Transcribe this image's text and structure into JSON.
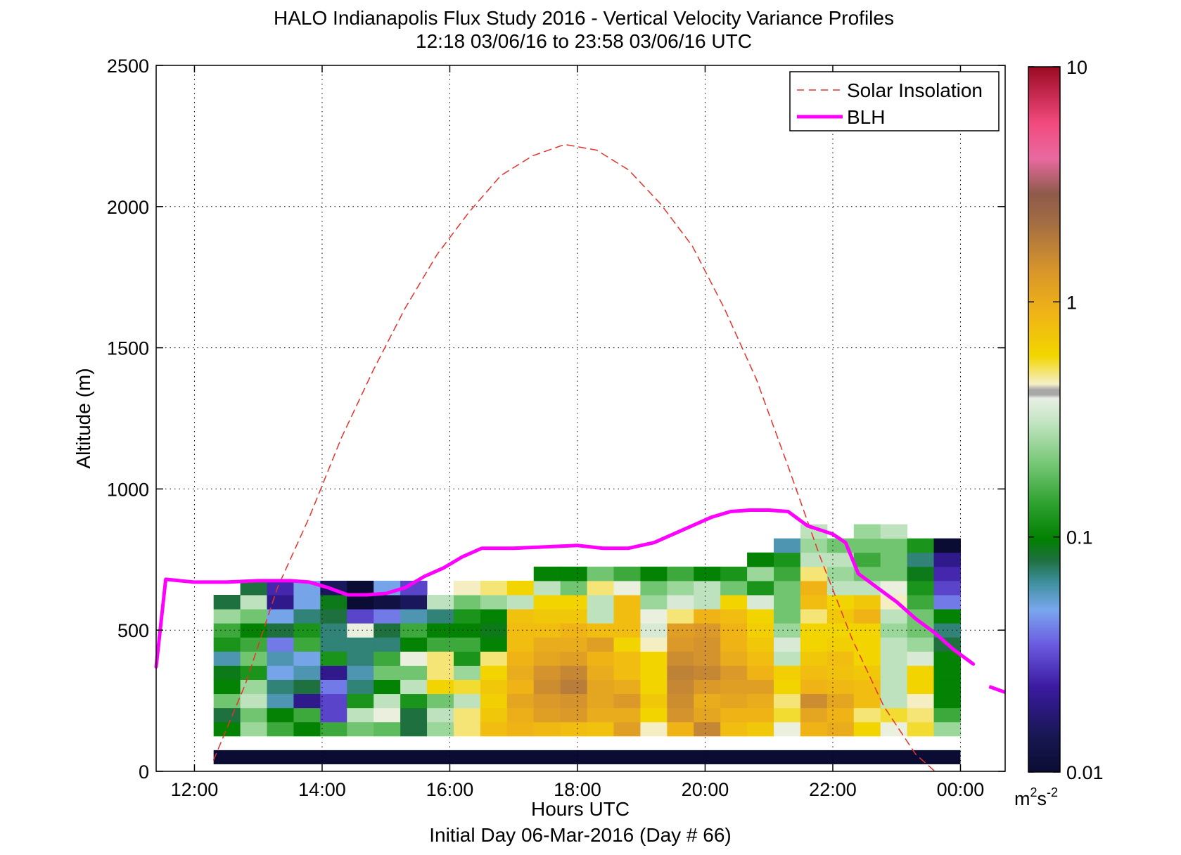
{
  "chart_data": {
    "type": "heatmap",
    "title": "HALO Indianapolis Flux Study 2016 - Vertical Velocity Variance Profiles",
    "subtitle": "12:18 03/06/16 to 23:58 03/06/16  UTC",
    "xlabel": "Hours UTC",
    "xlabel2": "Initial Day 06-Mar-2016 (Day # 66)",
    "ylabel": "Altitude (m)",
    "xlim": [
      11.4,
      24.7
    ],
    "ylim": [
      0,
      2500
    ],
    "x_ticks": [
      12,
      14,
      16,
      18,
      20,
      22,
      24
    ],
    "x_tick_labels": [
      "12:00",
      "14:00",
      "16:00",
      "18:00",
      "20:00",
      "22:00",
      "00:00"
    ],
    "y_ticks": [
      0,
      500,
      1000,
      1500,
      2000,
      2500
    ],
    "y_tick_labels": [
      "0",
      "500",
      "1000",
      "1500",
      "2000",
      "2500"
    ],
    "grid": true,
    "legend_position": "top-right",
    "colorbar": {
      "scale": "log",
      "min": 0.01,
      "max": 10,
      "tick_values": [
        0.01,
        0.1,
        1,
        10
      ],
      "tick_labels": [
        "0.01",
        "0.1",
        "1",
        "10"
      ],
      "units": "m²s⁻²",
      "units_base": "m",
      "units_sup1": "2",
      "units_s": "s",
      "units_sup2": "-2"
    },
    "series": [
      {
        "name": "Solar Insolation",
        "style": "dashed",
        "color": "#e8312b",
        "x": [
          12.3,
          12.8,
          13.3,
          13.8,
          14.3,
          14.8,
          15.3,
          15.8,
          16.3,
          16.8,
          17.3,
          17.8,
          18.3,
          18.8,
          19.3,
          19.8,
          20.3,
          20.8,
          21.3,
          21.8,
          22.3,
          22.8,
          23.3,
          23.6
        ],
        "y": [
          40,
          310,
          650,
          900,
          1180,
          1420,
          1640,
          1830,
          1980,
          2110,
          2180,
          2220,
          2200,
          2130,
          2010,
          1860,
          1640,
          1390,
          1080,
          760,
          470,
          230,
          60,
          0
        ]
      },
      {
        "name": "BLH",
        "style": "solid",
        "color": "#ff00ff",
        "x": [
          11.4,
          11.55,
          12.0,
          12.5,
          13.0,
          13.5,
          13.8,
          14.1,
          14.4,
          14.7,
          15.0,
          15.3,
          15.6,
          15.9,
          16.2,
          16.5,
          17.0,
          17.5,
          18.0,
          18.4,
          18.8,
          19.2,
          19.5,
          19.8,
          20.1,
          20.4,
          20.7,
          21.0,
          21.3,
          21.6,
          22.0,
          22.2,
          22.4,
          22.7,
          23.0,
          23.3,
          23.6,
          23.9,
          24.2
        ],
        "y": [
          370,
          680,
          670,
          670,
          675,
          675,
          670,
          650,
          625,
          625,
          630,
          650,
          690,
          720,
          760,
          790,
          790,
          795,
          800,
          790,
          790,
          810,
          840,
          870,
          900,
          920,
          925,
          925,
          920,
          870,
          840,
          810,
          700,
          650,
          600,
          540,
          490,
          430,
          380
        ],
        "extension_x": [
          24.45,
          24.7
        ],
        "extension_y": [
          300,
          280
        ]
      }
    ],
    "heatmap": {
      "x_start": 12.3,
      "x_end": 24.0,
      "bins": 28,
      "altitudes": [
        75,
        150,
        200,
        250,
        300,
        350,
        400,
        450,
        500,
        550,
        600,
        650,
        700,
        750,
        800,
        850,
        900,
        950
      ],
      "bin_height": 50,
      "variance_columns": [
        [
          0.12,
          0.1,
          0.08,
          0.2,
          0.1,
          0.09,
          0.06,
          0.12,
          0.15,
          0.25,
          0.08,
          null,
          null,
          null,
          null,
          null,
          null,
          null
        ],
        [
          0.15,
          0.25,
          0.2,
          0.3,
          0.25,
          0.12,
          0.2,
          0.15,
          0.1,
          0.2,
          0.3,
          0.08,
          null,
          null,
          null,
          null,
          null,
          null
        ],
        [
          0.08,
          0.15,
          0.1,
          0.06,
          0.07,
          0.05,
          0.06,
          0.04,
          0.08,
          0.05,
          0.02,
          0.025,
          null,
          null,
          null,
          null,
          null,
          null
        ],
        [
          0.08,
          0.1,
          0.15,
          0.02,
          0.08,
          0.06,
          0.05,
          0.15,
          0.12,
          0.07,
          0.05,
          0.05,
          null,
          null,
          null,
          null,
          null,
          null
        ],
        [
          0.03,
          0.15,
          0.03,
          0.03,
          0.04,
          0.02,
          0.12,
          0.07,
          0.07,
          0.08,
          0.09,
          0.015,
          null,
          null,
          null,
          null,
          null,
          null
        ],
        [
          0.15,
          0.2,
          0.3,
          0.12,
          0.07,
          0.06,
          0.07,
          0.07,
          0.4,
          0.03,
          0.01,
          0.01,
          null,
          null,
          null,
          null,
          null,
          null
        ],
        [
          0.25,
          0.18,
          0.4,
          0.3,
          0.1,
          0.2,
          0.15,
          0.07,
          0.08,
          0.04,
          0.012,
          0.05,
          null,
          null,
          null,
          null,
          null,
          null
        ],
        [
          0.1,
          0.08,
          0.08,
          0.12,
          0.3,
          0.2,
          0.4,
          0.1,
          0.15,
          0.06,
          0.015,
          0.03,
          null,
          null,
          null,
          null,
          null,
          null
        ],
        [
          0.3,
          0.25,
          0.3,
          0.2,
          0.6,
          0.5,
          0.5,
          0.15,
          0.1,
          0.07,
          0.3,
          null,
          null,
          null,
          null,
          null,
          null,
          null
        ],
        [
          0.45,
          0.5,
          0.5,
          0.3,
          0.55,
          0.25,
          0.12,
          0.15,
          0.1,
          0.12,
          0.2,
          0.45,
          null,
          null,
          null,
          null,
          null,
          null
        ],
        [
          0.6,
          0.8,
          0.7,
          0.65,
          0.7,
          0.6,
          0.5,
          0.1,
          0.09,
          0.1,
          0.25,
          0.5,
          null,
          null,
          null,
          null,
          null,
          null
        ],
        [
          0.55,
          0.9,
          0.95,
          1.1,
          0.9,
          1.0,
          0.9,
          0.8,
          0.8,
          0.75,
          0.3,
          0.6,
          null,
          null,
          null,
          null,
          null,
          null
        ],
        [
          0.6,
          0.85,
          1.2,
          1.3,
          1.5,
          1.4,
          1.1,
          1.0,
          0.8,
          0.7,
          0.6,
          0.3,
          0.1,
          null,
          null,
          null,
          null,
          null
        ],
        [
          0.55,
          0.8,
          1.3,
          1.4,
          1.8,
          1.6,
          1.2,
          1.0,
          0.9,
          0.7,
          0.6,
          0.2,
          0.1,
          null,
          null,
          null,
          null,
          null
        ],
        [
          0.7,
          0.75,
          1.0,
          1.1,
          1.1,
          1.0,
          0.9,
          1.2,
          0.8,
          0.3,
          0.3,
          0.5,
          0.2,
          null,
          null,
          null,
          null,
          null
        ],
        [
          0.7,
          1.2,
          1.0,
          1.3,
          1.0,
          0.8,
          0.8,
          0.6,
          0.8,
          0.8,
          0.8,
          0.4,
          0.15,
          null,
          null,
          null,
          null,
          null
        ],
        [
          0.35,
          0.45,
          0.6,
          0.7,
          0.6,
          0.6,
          0.6,
          0.45,
          0.35,
          0.4,
          0.25,
          0.2,
          0.1,
          null,
          null,
          null,
          null,
          null
        ],
        [
          0.8,
          0.9,
          1.4,
          1.5,
          1.6,
          1.7,
          1.5,
          1.3,
          1.2,
          0.5,
          0.35,
          0.25,
          0.15,
          null,
          null,
          null,
          null,
          null
        ],
        [
          0.9,
          1.6,
          1.1,
          1.0,
          1.3,
          1.6,
          1.4,
          1.4,
          1.3,
          0.9,
          0.3,
          0.3,
          0.1,
          null,
          null,
          null,
          null,
          null
        ],
        [
          0.75,
          0.8,
          0.9,
          1.1,
          1.2,
          1.3,
          1.0,
          0.9,
          0.9,
          0.8,
          0.6,
          0.2,
          0.12,
          null,
          null,
          null,
          null,
          null
        ],
        [
          0.6,
          0.7,
          0.9,
          1.0,
          1.2,
          0.9,
          0.8,
          0.7,
          0.65,
          0.6,
          0.35,
          0.12,
          0.25,
          0.1,
          null,
          null,
          null,
          null
        ],
        [
          0.5,
          0.4,
          0.55,
          0.5,
          0.6,
          0.65,
          0.3,
          0.35,
          0.25,
          0.2,
          0.2,
          0.2,
          0.15,
          0.12,
          0.06,
          null,
          null,
          null
        ],
        [
          0.6,
          0.9,
          1.1,
          1.5,
          0.9,
          0.8,
          0.7,
          0.6,
          0.6,
          0.5,
          0.8,
          0.9,
          0.5,
          0.3,
          0.25,
          0.3,
          null,
          null
        ],
        [
          0.6,
          1.0,
          0.9,
          1.1,
          0.85,
          0.75,
          0.8,
          0.65,
          0.6,
          0.7,
          0.6,
          0.3,
          0.25,
          0.3,
          0.2,
          null,
          null,
          null
        ],
        [
          0.3,
          0.6,
          0.5,
          0.8,
          0.8,
          0.7,
          0.6,
          0.6,
          0.6,
          0.9,
          0.7,
          0.3,
          0.2,
          0.15,
          0.2,
          0.25,
          null,
          null
        ],
        [
          0.35,
          0.4,
          0.55,
          0.3,
          0.3,
          0.3,
          0.3,
          0.3,
          0.25,
          0.3,
          0.45,
          0.4,
          0.2,
          0.2,
          0.2,
          0.3,
          null,
          null
        ],
        [
          0.35,
          0.55,
          0.5,
          0.45,
          0.6,
          0.6,
          0.35,
          0.25,
          0.2,
          0.2,
          0.15,
          0.12,
          0.09,
          0.07,
          0.12,
          null,
          null,
          null
        ],
        [
          0.2,
          0.25,
          0.15,
          0.1,
          0.1,
          0.1,
          0.1,
          0.08,
          0.07,
          0.1,
          0.04,
          0.03,
          0.025,
          0.02,
          0.01,
          null,
          null,
          null
        ]
      ]
    }
  }
}
